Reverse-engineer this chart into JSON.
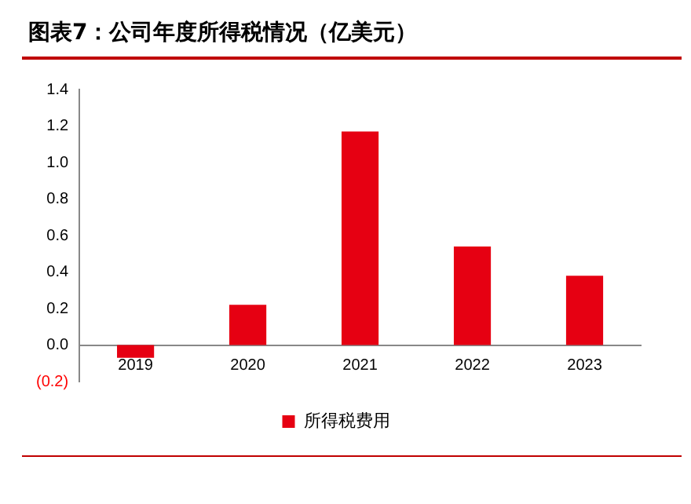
{
  "chart_data": {
    "type": "bar",
    "title": "图表7：公司年度所得税情况（亿美元）",
    "categories": [
      "2019",
      "2020",
      "2021",
      "2022",
      "2023"
    ],
    "series": [
      {
        "name": "所得税费用",
        "color": "#e60012",
        "values": [
          -0.07,
          0.22,
          1.17,
          0.54,
          0.38
        ]
      }
    ],
    "ylim": [
      -0.2,
      1.4
    ],
    "yticks": [
      {
        "value": -0.2,
        "label": "(0.2)"
      },
      {
        "value": 0,
        "label": "0.0"
      },
      {
        "value": 0.2,
        "label": "0.2"
      },
      {
        "value": 0.4,
        "label": "0.4"
      },
      {
        "value": 0.6,
        "label": "0.6"
      },
      {
        "value": 0.8,
        "label": "0.8"
      },
      {
        "value": 1,
        "label": "1.0"
      },
      {
        "value": 1.2,
        "label": "1.2"
      },
      {
        "value": 1.4,
        "label": "1.4"
      }
    ],
    "grid": false,
    "legend": "bottom"
  }
}
